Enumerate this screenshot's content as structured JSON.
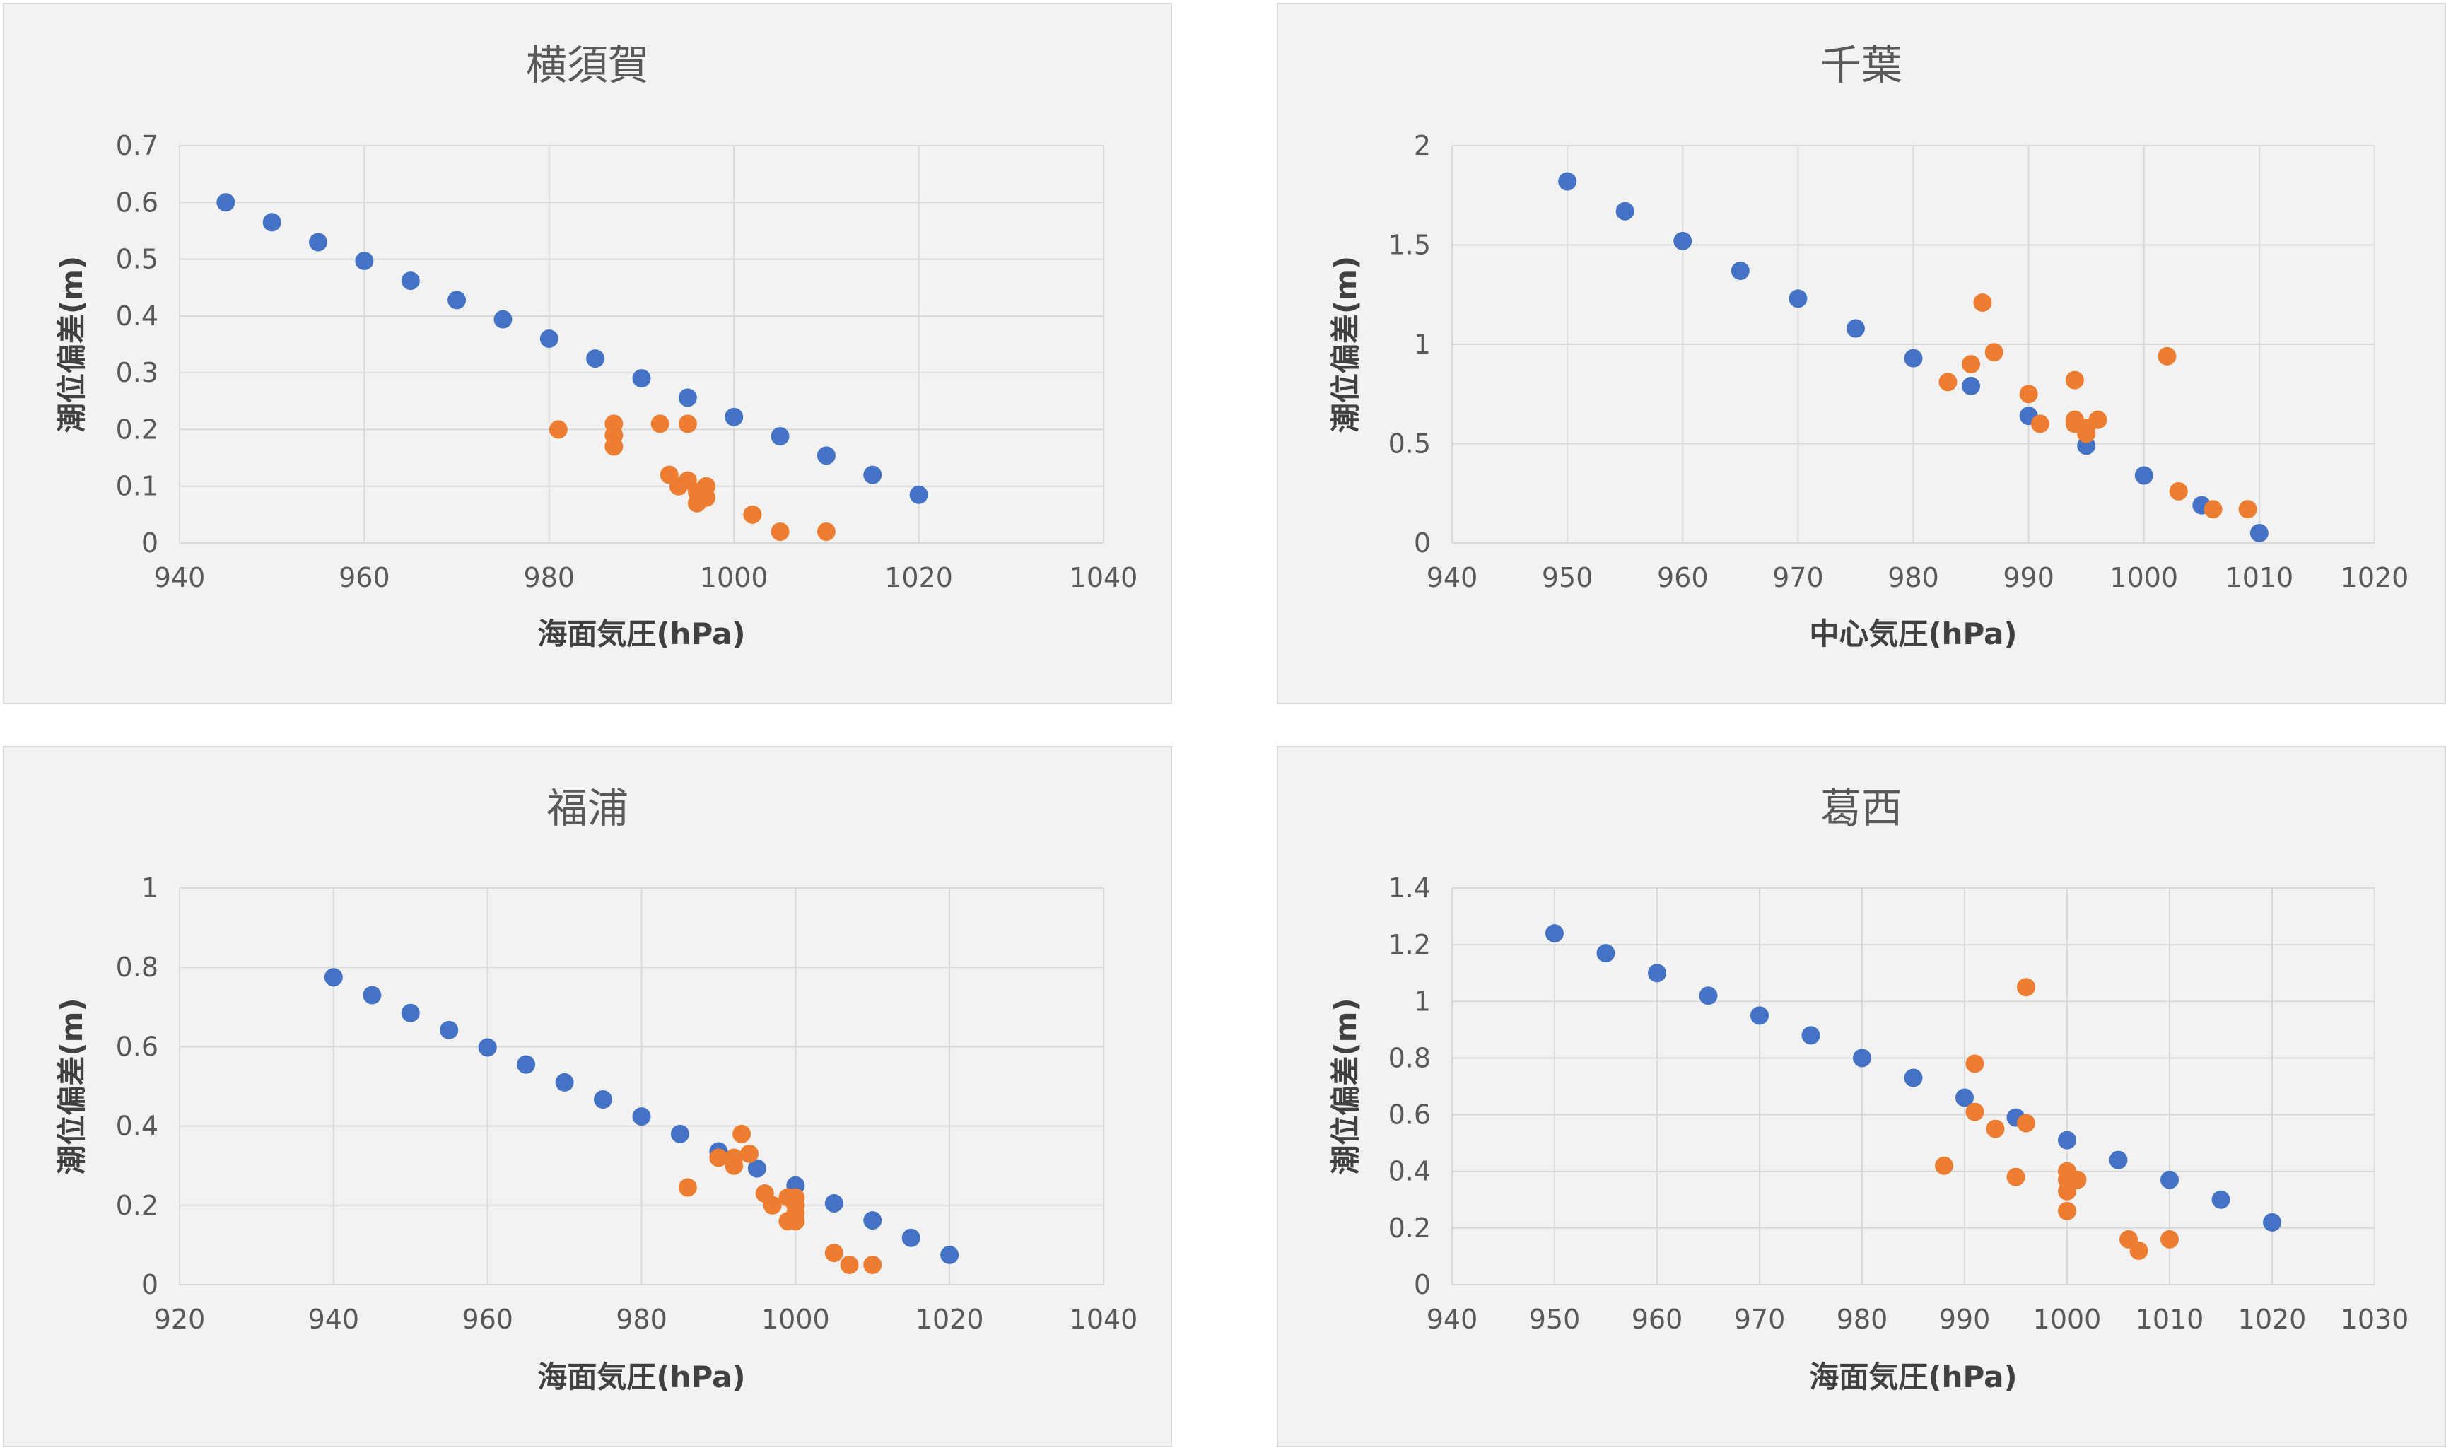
{
  "colors": {
    "series1": "#4472c4",
    "series2": "#ed7d31",
    "grid": "#d9d9d9",
    "panel_bg": "#f2f2f2",
    "text": "#595959"
  },
  "chart_data": [
    {
      "type": "scatter",
      "title": "横須賀",
      "xlabel": "海面気圧(hPa)",
      "ylabel": "潮位偏差(m)",
      "xlim": [
        940,
        1040
      ],
      "ylim": [
        0,
        0.7
      ],
      "xticks": [
        940,
        960,
        980,
        1000,
        1020,
        1040
      ],
      "yticks": [
        0,
        0.1,
        0.2,
        0.3,
        0.4,
        0.5,
        0.6,
        0.7
      ],
      "grid": true,
      "series": [
        {
          "color": "#4472c4",
          "points": [
            [
              945,
              0.6
            ],
            [
              950,
              0.565
            ],
            [
              955,
              0.53
            ],
            [
              960,
              0.497
            ],
            [
              965,
              0.462
            ],
            [
              970,
              0.428
            ],
            [
              975,
              0.394
            ],
            [
              980,
              0.36
            ],
            [
              985,
              0.325
            ],
            [
              990,
              0.29
            ],
            [
              995,
              0.256
            ],
            [
              1000,
              0.222
            ],
            [
              1005,
              0.188
            ],
            [
              1010,
              0.154
            ],
            [
              1015,
              0.12
            ],
            [
              1020,
              0.085
            ]
          ]
        },
        {
          "color": "#ed7d31",
          "points": [
            [
              981,
              0.2
            ],
            [
              987,
              0.21
            ],
            [
              987,
              0.19
            ],
            [
              987,
              0.17
            ],
            [
              992,
              0.21
            ],
            [
              995,
              0.21
            ],
            [
              993,
              0.12
            ],
            [
              994,
              0.1
            ],
            [
              995,
              0.11
            ],
            [
              996,
              0.09
            ],
            [
              996,
              0.07
            ],
            [
              997,
              0.1
            ],
            [
              997,
              0.08
            ],
            [
              1002,
              0.05
            ],
            [
              1005,
              0.02
            ],
            [
              1010,
              0.02
            ]
          ]
        }
      ]
    },
    {
      "type": "scatter",
      "title": "千葉",
      "xlabel": "中心気圧(hPa)",
      "ylabel": "潮位偏差(m)",
      "xlim": [
        940,
        1020
      ],
      "ylim": [
        0,
        2
      ],
      "xticks": [
        940,
        950,
        960,
        970,
        980,
        990,
        1000,
        1010,
        1020
      ],
      "yticks": [
        0,
        0.5,
        1,
        1.5,
        2
      ],
      "grid": true,
      "series": [
        {
          "color": "#4472c4",
          "points": [
            [
              950,
              1.82
            ],
            [
              955,
              1.67
            ],
            [
              960,
              1.52
            ],
            [
              965,
              1.37
            ],
            [
              970,
              1.23
            ],
            [
              975,
              1.08
            ],
            [
              980,
              0.93
            ],
            [
              985,
              0.79
            ],
            [
              990,
              0.64
            ],
            [
              995,
              0.49
            ],
            [
              1000,
              0.34
            ],
            [
              1005,
              0.19
            ],
            [
              1010,
              0.05
            ]
          ]
        },
        {
          "color": "#ed7d31",
          "points": [
            [
              983,
              0.81
            ],
            [
              985,
              0.9
            ],
            [
              986,
              1.21
            ],
            [
              987,
              0.96
            ],
            [
              990,
              0.75
            ],
            [
              991,
              0.6
            ],
            [
              994,
              0.82
            ],
            [
              994,
              0.62
            ],
            [
              994,
              0.6
            ],
            [
              995,
              0.58
            ],
            [
              995,
              0.55
            ],
            [
              996,
              0.62
            ],
            [
              1002,
              0.94
            ],
            [
              1003,
              0.26
            ],
            [
              1006,
              0.17
            ],
            [
              1009,
              0.17
            ]
          ]
        }
      ]
    },
    {
      "type": "scatter",
      "title": "福浦",
      "xlabel": "海面気圧(hPa)",
      "ylabel": "潮位偏差(m)",
      "xlim": [
        920,
        1040
      ],
      "ylim": [
        0,
        1
      ],
      "xticks": [
        920,
        940,
        960,
        980,
        1000,
        1020,
        1040
      ],
      "yticks": [
        0,
        0.2,
        0.4,
        0.6,
        0.8,
        1
      ],
      "grid": true,
      "series": [
        {
          "color": "#4472c4",
          "points": [
            [
              940,
              0.775
            ],
            [
              945,
              0.73
            ],
            [
              950,
              0.685
            ],
            [
              955,
              0.642
            ],
            [
              960,
              0.598
            ],
            [
              965,
              0.555
            ],
            [
              970,
              0.51
            ],
            [
              975,
              0.467
            ],
            [
              980,
              0.424
            ],
            [
              985,
              0.38
            ],
            [
              990,
              0.336
            ],
            [
              995,
              0.293
            ],
            [
              1000,
              0.25
            ],
            [
              1005,
              0.205
            ],
            [
              1010,
              0.162
            ],
            [
              1015,
              0.118
            ],
            [
              1020,
              0.075
            ]
          ]
        },
        {
          "color": "#ed7d31",
          "points": [
            [
              986,
              0.245
            ],
            [
              990,
              0.32
            ],
            [
              992,
              0.32
            ],
            [
              992,
              0.3
            ],
            [
              993,
              0.38
            ],
            [
              994,
              0.33
            ],
            [
              996,
              0.23
            ],
            [
              997,
              0.2
            ],
            [
              999,
              0.22
            ],
            [
              999,
              0.16
            ],
            [
              1000,
              0.22
            ],
            [
              1000,
              0.2
            ],
            [
              1000,
              0.18
            ],
            [
              1000,
              0.16
            ],
            [
              1005,
              0.08
            ],
            [
              1007,
              0.05
            ],
            [
              1010,
              0.05
            ]
          ]
        }
      ]
    },
    {
      "type": "scatter",
      "title": "葛西",
      "xlabel": "海面気圧(hPa)",
      "ylabel": "潮位偏差(m)",
      "xlim": [
        940,
        1030
      ],
      "ylim": [
        0,
        1.4
      ],
      "xticks": [
        940,
        950,
        960,
        970,
        980,
        990,
        1000,
        1010,
        1020,
        1030
      ],
      "yticks": [
        0,
        0.2,
        0.4,
        0.6,
        0.8,
        1,
        1.2,
        1.4
      ],
      "grid": true,
      "series": [
        {
          "color": "#4472c4",
          "points": [
            [
              950,
              1.24
            ],
            [
              955,
              1.17
            ],
            [
              960,
              1.1
            ],
            [
              965,
              1.02
            ],
            [
              970,
              0.95
            ],
            [
              975,
              0.88
            ],
            [
              980,
              0.8
            ],
            [
              985,
              0.73
            ],
            [
              990,
              0.66
            ],
            [
              995,
              0.59
            ],
            [
              1000,
              0.51
            ],
            [
              1005,
              0.44
            ],
            [
              1010,
              0.37
            ],
            [
              1015,
              0.3
            ],
            [
              1020,
              0.22
            ]
          ]
        },
        {
          "color": "#ed7d31",
          "points": [
            [
              988,
              0.42
            ],
            [
              991,
              0.78
            ],
            [
              991,
              0.61
            ],
            [
              993,
              0.55
            ],
            [
              995,
              0.38
            ],
            [
              996,
              1.05
            ],
            [
              996,
              0.57
            ],
            [
              1000,
              0.4
            ],
            [
              1000,
              0.37
            ],
            [
              1000,
              0.33
            ],
            [
              1000,
              0.26
            ],
            [
              1001,
              0.37
            ],
            [
              1006,
              0.16
            ],
            [
              1007,
              0.12
            ],
            [
              1010,
              0.16
            ]
          ]
        }
      ]
    }
  ]
}
